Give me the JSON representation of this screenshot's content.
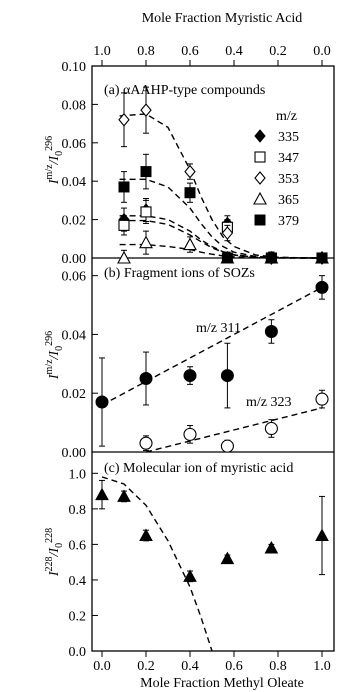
{
  "top_axis": {
    "title": "Mole Fraction Myristic Acid",
    "ticks": [
      1.0,
      0.8,
      0.6,
      0.4,
      0.2,
      0.0
    ],
    "tick_labels": [
      "1.0",
      "0.8",
      "0.6",
      "0.4",
      "0.2",
      "0.0"
    ]
  },
  "bottom_axis": {
    "title": "Mole Fraction Methyl Oleate",
    "ticks": [
      0.0,
      0.2,
      0.4,
      0.6,
      0.8,
      1.0
    ],
    "tick_labels": [
      "0.0",
      "0.2",
      "0.4",
      "0.6",
      "0.8",
      "1.0"
    ]
  },
  "chart_data": [
    {
      "type": "scatter",
      "panel": "a",
      "title": "(a) αAAHP-type compounds",
      "ylabel_main": "I",
      "ylabel_sup": "m/z",
      "ylabel_mid": "/I",
      "ylabel_sub": "0",
      "ylabel_sup2": "296",
      "ylim": [
        0,
        0.1
      ],
      "y_ticks": [
        0,
        0.02,
        0.04,
        0.06,
        0.08,
        0.1
      ],
      "y_tick_labels": [
        "0.00",
        "0.02",
        "0.04",
        "0.06",
        "0.08",
        "0.10"
      ],
      "legend_title": "m/z",
      "legend_position": "right",
      "series": [
        {
          "name": "335",
          "marker": "filled-diamond",
          "x": [
            0.1,
            0.2,
            0.57,
            0.77,
            1.0
          ],
          "y": [
            0.02,
            0.025,
            0.018,
            0.0,
            0.0
          ],
          "err": [
            0.006,
            0.006,
            0.004,
            0.003,
            0.002
          ]
        },
        {
          "name": "347",
          "marker": "open-square",
          "x": [
            0.1,
            0.2,
            0.57,
            0.77,
            1.0
          ],
          "y": [
            0.017,
            0.024,
            0.016,
            0.0,
            0.0
          ],
          "err": [
            0.005,
            0.006,
            0.004,
            0.003,
            0.002
          ]
        },
        {
          "name": "353",
          "marker": "open-diamond",
          "x": [
            0.1,
            0.2,
            0.4,
            0.57,
            0.77,
            1.0
          ],
          "y": [
            0.072,
            0.077,
            0.045,
            0.013,
            0.0,
            0.0
          ],
          "err": [
            0.014,
            0.012,
            0.004,
            0.004,
            0.003,
            0.002
          ]
        },
        {
          "name": "365",
          "marker": "open-triangle",
          "x": [
            0.1,
            0.2,
            0.4,
            0.57,
            0.77,
            1.0
          ],
          "y": [
            0.0,
            0.008,
            0.007,
            0.0,
            0.0,
            0.0
          ],
          "err": [
            0.004,
            0.006,
            0.004,
            0.003,
            0.003,
            0.002
          ]
        },
        {
          "name": "379",
          "marker": "filled-square",
          "x": [
            0.1,
            0.2,
            0.4,
            0.57,
            0.77,
            1.0
          ],
          "y": [
            0.037,
            0.045,
            0.034,
            0.0,
            0.0,
            0.0
          ],
          "err": [
            0.008,
            0.009,
            0.005,
            0.003,
            0.003,
            0.002
          ]
        }
      ],
      "fit_curves": [
        {
          "x": [
            0.08,
            0.2,
            0.3,
            0.4,
            0.45,
            0.5,
            0.55,
            0.6,
            0.7,
            0.8,
            0.9,
            1.0
          ],
          "y": [
            0.074,
            0.075,
            0.068,
            0.046,
            0.032,
            0.02,
            0.011,
            0.006,
            0.0015,
            0.0004,
            0.0001,
            0.0
          ]
        },
        {
          "x": [
            0.08,
            0.2,
            0.3,
            0.4,
            0.45,
            0.5,
            0.55,
            0.6,
            0.7,
            0.8,
            0.9,
            1.0
          ],
          "y": [
            0.041,
            0.041,
            0.037,
            0.026,
            0.018,
            0.011,
            0.006,
            0.003,
            0.0008,
            0.0002,
            0.0001,
            0.0
          ]
        },
        {
          "x": [
            0.08,
            0.2,
            0.3,
            0.4,
            0.45,
            0.5,
            0.55,
            0.6,
            0.7,
            0.8,
            0.9,
            1.0
          ],
          "y": [
            0.022,
            0.022,
            0.02,
            0.014,
            0.0095,
            0.006,
            0.0033,
            0.0017,
            0.0004,
            0.0001,
            0.0,
            0.0
          ]
        },
        {
          "x": [
            0.08,
            0.2,
            0.3,
            0.4,
            0.45,
            0.5,
            0.55,
            0.6,
            0.7,
            0.8,
            0.9,
            1.0
          ],
          "y": [
            0.0195,
            0.0195,
            0.0175,
            0.012,
            0.0085,
            0.0053,
            0.003,
            0.0015,
            0.0004,
            0.0001,
            0.0,
            0.0
          ]
        },
        {
          "x": [
            0.08,
            0.2,
            0.3,
            0.4,
            0.45,
            0.5,
            0.55,
            0.6,
            0.7,
            0.8,
            0.9,
            1.0
          ],
          "y": [
            0.007,
            0.007,
            0.006,
            0.0045,
            0.003,
            0.002,
            0.0011,
            0.0006,
            0.0002,
            0.0,
            0.0,
            0.0
          ]
        }
      ]
    },
    {
      "type": "scatter",
      "panel": "b",
      "title": "(b) Fragment ions of SOZs",
      "ylabel_main": "I",
      "ylabel_sup": "m/z",
      "ylabel_mid": "/I",
      "ylabel_sub": "0",
      "ylabel_sup2": "296",
      "ylim": [
        0,
        0.066
      ],
      "y_ticks": [
        0,
        0.02,
        0.04,
        0.06
      ],
      "y_tick_labels": [
        "0.00",
        "0.02",
        "0.04",
        "0.06"
      ],
      "series": [
        {
          "name": "m/z 311",
          "marker": "filled-circle",
          "x": [
            0.0,
            0.2,
            0.4,
            0.57,
            0.77,
            1.0
          ],
          "y": [
            0.017,
            0.025,
            0.026,
            0.026,
            0.041,
            0.056
          ],
          "err": [
            0.015,
            0.009,
            0.003,
            0.011,
            0.004,
            0.004
          ]
        },
        {
          "name": "m/z 323",
          "marker": "open-circle",
          "x": [
            0.2,
            0.4,
            0.57,
            0.77,
            1.0
          ],
          "y": [
            0.003,
            0.006,
            0.002,
            0.008,
            0.018
          ],
          "err": [
            0.0025,
            0.003,
            0.002,
            0.003,
            0.003
          ]
        }
      ],
      "fit_curves": [
        {
          "x": [
            0.0,
            1.0
          ],
          "y": [
            0.016,
            0.056
          ]
        },
        {
          "x": [
            0.2,
            1.0
          ],
          "y": [
            -0.002,
            0.015
          ]
        }
      ],
      "annotations": [
        "m/z 311",
        "m/z 323"
      ]
    },
    {
      "type": "scatter",
      "panel": "c",
      "title": "(c) Molecular ion of myristic acid",
      "ylabel_main": "I",
      "ylabel_sup": "228",
      "ylabel_mid": "/I",
      "ylabel_sub": "0",
      "ylabel_sup2": "228",
      "ylim": [
        0,
        1.12
      ],
      "y_ticks": [
        0,
        0.2,
        0.4,
        0.6,
        0.8,
        1.0
      ],
      "y_tick_labels": [
        "0.0",
        "0.2",
        "0.4",
        "0.6",
        "0.8",
        "1.0"
      ],
      "series": [
        {
          "name": "molecular ion",
          "marker": "filled-triangle",
          "x": [
            0.0,
            0.1,
            0.2,
            0.4,
            0.57,
            0.77,
            1.0
          ],
          "y": [
            0.88,
            0.87,
            0.65,
            0.42,
            0.52,
            0.58,
            0.65
          ],
          "err": [
            0.08,
            0.03,
            0.03,
            0.03,
            0.02,
            0.02,
            0.22
          ]
        }
      ],
      "fit_curves": [
        {
          "x": [
            0.0,
            0.1,
            0.2,
            0.3,
            0.4,
            0.45,
            0.5
          ],
          "y": [
            0.98,
            0.94,
            0.82,
            0.62,
            0.36,
            0.19,
            0.0
          ]
        }
      ]
    }
  ]
}
